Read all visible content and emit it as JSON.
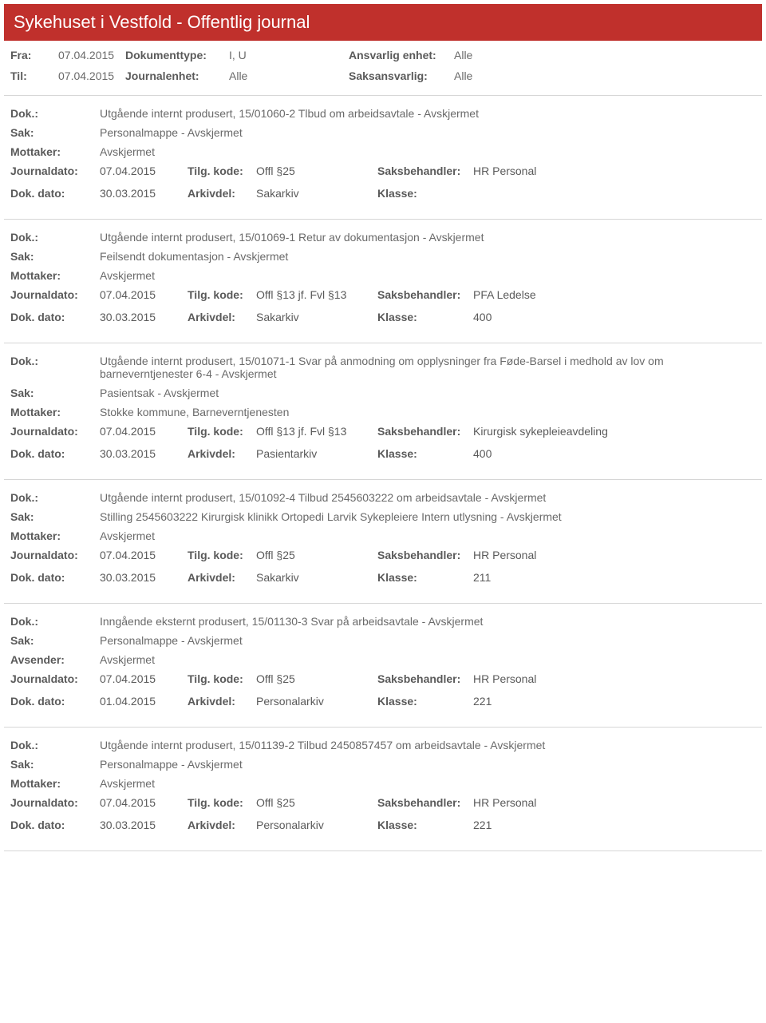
{
  "header": {
    "title": "Sykehuset i Vestfold - Offentlig journal"
  },
  "filters": {
    "fra_label": "Fra:",
    "fra_val": "07.04.2015",
    "til_label": "Til:",
    "til_val": "07.04.2015",
    "doktype_label": "Dokumenttype:",
    "doktype_val": "I, U",
    "journalenhet_label": "Journalenhet:",
    "journalenhet_val": "Alle",
    "ansvarlig_label": "Ansvarlig enhet:",
    "ansvarlig_val": "Alle",
    "saksansvarlig_label": "Saksansvarlig:",
    "saksansvarlig_val": "Alle"
  },
  "labels": {
    "dok": "Dok.:",
    "sak": "Sak:",
    "mottaker": "Mottaker:",
    "avsender": "Avsender:",
    "journaldato": "Journaldato:",
    "dokdato": "Dok. dato:",
    "tilgkode": "Tilg. kode:",
    "arkivdel": "Arkivdel:",
    "saksbehandler": "Saksbehandler:",
    "klasse": "Klasse:"
  },
  "entries": [
    {
      "dok": "Utgående internt produsert, 15/01060-2 Tlbud om arbeidsavtale - Avskjermet",
      "sak": "Personalmappe - Avskjermet",
      "party_label": "Mottaker:",
      "party_val": "Avskjermet",
      "journaldato": "07.04.2015",
      "dokdato": "30.03.2015",
      "tilgkode": "Offl §25",
      "arkivdel": "Sakarkiv",
      "saksbehandler": "HR Personal",
      "klasse": ""
    },
    {
      "dok": "Utgående internt produsert, 15/01069-1 Retur av dokumentasjon - Avskjermet",
      "sak": "Feilsendt dokumentasjon - Avskjermet",
      "party_label": "Mottaker:",
      "party_val": "Avskjermet",
      "journaldato": "07.04.2015",
      "dokdato": "30.03.2015",
      "tilgkode": "Offl §13 jf. Fvl §13",
      "arkivdel": "Sakarkiv",
      "saksbehandler": "PFA Ledelse",
      "klasse": "400"
    },
    {
      "dok": "Utgående internt produsert, 15/01071-1 Svar på anmodning om opplysninger fra Føde-Barsel i medhold av lov om barneverntjenester 6-4 - Avskjermet",
      "sak": "Pasientsak - Avskjermet",
      "party_label": "Mottaker:",
      "party_val": "Stokke kommune, Barneverntjenesten",
      "journaldato": "07.04.2015",
      "dokdato": "30.03.2015",
      "tilgkode": "Offl §13 jf. Fvl §13",
      "arkivdel": "Pasientarkiv",
      "saksbehandler": "Kirurgisk sykepleieavdeling",
      "klasse": "400"
    },
    {
      "dok": "Utgående internt produsert, 15/01092-4 Tilbud 2545603222 om arbeidsavtale - Avskjermet",
      "sak": "Stilling 2545603222 Kirurgisk klinikk Ortopedi Larvik Sykepleiere Intern utlysning - Avskjermet",
      "party_label": "Mottaker:",
      "party_val": "Avskjermet",
      "journaldato": "07.04.2015",
      "dokdato": "30.03.2015",
      "tilgkode": "Offl §25",
      "arkivdel": "Sakarkiv",
      "saksbehandler": "HR Personal",
      "klasse": "211"
    },
    {
      "dok": "Inngående eksternt produsert, 15/01130-3 Svar på arbeidsavtale - Avskjermet",
      "sak": "Personalmappe - Avskjermet",
      "party_label": "Avsender:",
      "party_val": "Avskjermet",
      "journaldato": "07.04.2015",
      "dokdato": "01.04.2015",
      "tilgkode": "Offl §25",
      "arkivdel": "Personalarkiv",
      "saksbehandler": "HR Personal",
      "klasse": "221"
    },
    {
      "dok": "Utgående internt produsert, 15/01139-2 Tilbud 2450857457 om arbeidsavtale - Avskjermet",
      "sak": "Personalmappe - Avskjermet",
      "party_label": "Mottaker:",
      "party_val": "Avskjermet",
      "journaldato": "07.04.2015",
      "dokdato": "30.03.2015",
      "tilgkode": "Offl §25",
      "arkivdel": "Personalarkiv",
      "saksbehandler": "HR Personal",
      "klasse": "221"
    }
  ],
  "style": {
    "accent_color": "#c0302c",
    "text_color": "#5a5a5a",
    "muted_color": "#6a6a6a",
    "border_color": "#d6d6d6",
    "background": "#ffffff",
    "title_fontsize": 22,
    "body_fontsize": 14
  }
}
